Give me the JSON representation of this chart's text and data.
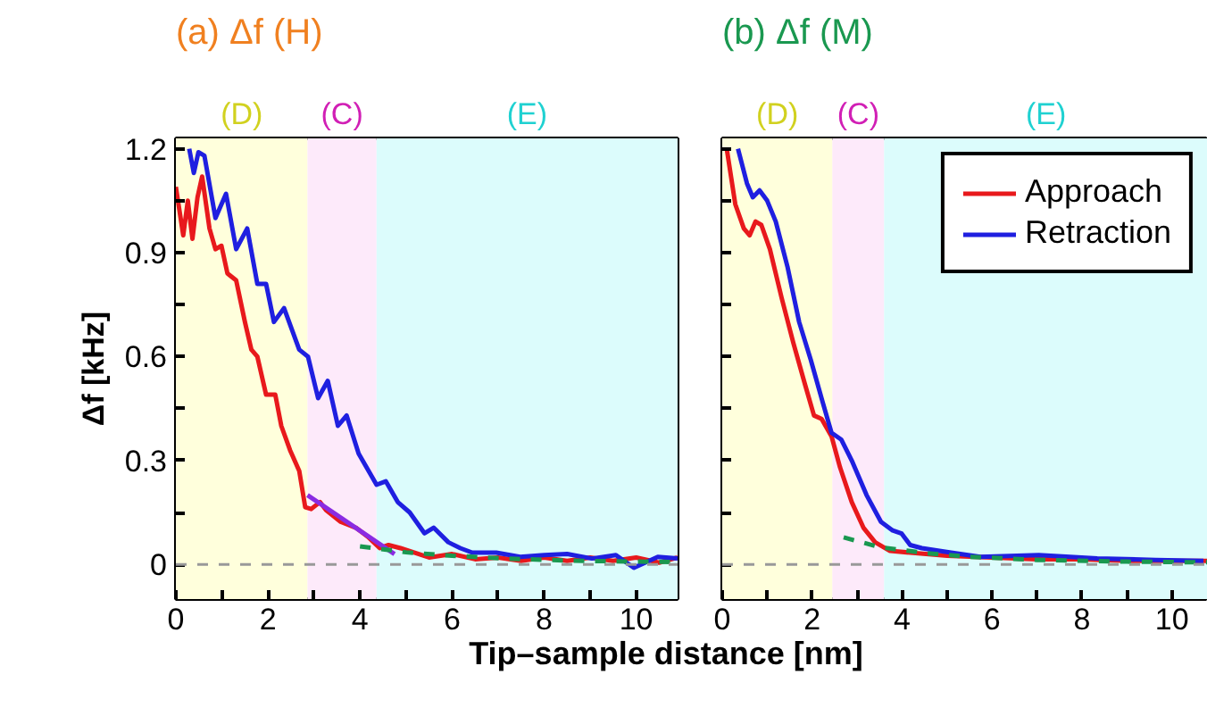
{
  "chart_data": [
    {
      "type": "line",
      "title": "(a) Δf (H)",
      "xlabel": "Tip–sample distance [nm]",
      "ylabel": "Δf [kHz]",
      "xlim": [
        0,
        10.9
      ],
      "ylim": [
        -0.1,
        1.23
      ],
      "xticks": [
        0,
        {
          "value": 1,
          "label": null
        },
        2,
        {
          "value": 3,
          "label": null
        },
        4,
        {
          "value": 5,
          "label": null
        },
        6,
        {
          "value": 7,
          "label": null
        },
        8,
        {
          "value": 9,
          "label": null
        },
        10
      ],
      "yticks": [
        0,
        {
          "value": 0.15,
          "label": null
        },
        0.3,
        {
          "value": 0.45,
          "label": null
        },
        0.6,
        {
          "value": 0.75,
          "label": null
        },
        0.9,
        {
          "value": 1.05,
          "label": null
        },
        1.2
      ],
      "grid": false,
      "legend": false,
      "line_style": "solid",
      "marker": "none",
      "bands": [
        {
          "axis": "x",
          "from": 0,
          "to": 2.86,
          "label": "(D)",
          "color": "#ffffdc"
        },
        {
          "axis": "x",
          "from": 2.86,
          "to": 4.36,
          "label": "(C)",
          "color": "#fdeafa"
        },
        {
          "axis": "x",
          "from": 4.36,
          "to": 10.9,
          "label": "(E)",
          "color": "#dcfcfc"
        }
      ],
      "ref_lines": [
        {
          "axis": "y",
          "value": 0,
          "color": "#999999",
          "line_style": "dashed"
        }
      ],
      "series": [
        {
          "color": "#e8191c",
          "x": [
            0,
            0.16,
            0.26,
            0.36,
            0.47,
            0.57,
            0.73,
            0.86,
            0.99,
            1.12,
            1.31,
            1.5,
            1.64,
            1.77,
            1.96,
            2.16,
            2.29,
            2.48,
            2.68,
            2.81,
            2.94,
            3.13,
            3.26,
            3.58,
            3.91,
            4.17,
            4.43,
            4.62,
            4.88,
            5.5,
            6,
            6.5,
            7,
            7.5,
            8,
            8.5,
            9,
            9.5,
            10,
            10.5,
            10.9
          ],
          "values": [
            1.09,
            0.95,
            1.05,
            0.94,
            1.06,
            1.12,
            0.97,
            0.91,
            0.92,
            0.84,
            0.82,
            0.7,
            0.62,
            0.6,
            0.49,
            0.49,
            0.4,
            0.33,
            0.27,
            0.165,
            0.16,
            0.18,
            0.157,
            0.123,
            0.106,
            0.08,
            0.047,
            0.056,
            0.047,
            0.02,
            0.03,
            0.015,
            0.02,
            0.01,
            0.02,
            0.01,
            0.02,
            0.01,
            0.02,
            0.005,
            0.02
          ]
        },
        {
          "color": "#1f1fe0",
          "x": [
            0.29,
            0.39,
            0.49,
            0.62,
            0.86,
            1.09,
            1.31,
            1.55,
            1.77,
            1.96,
            2.13,
            2.35,
            2.68,
            2.87,
            3.09,
            3.3,
            3.52,
            3.71,
            3.97,
            4.36,
            4.56,
            4.82,
            5.08,
            5.4,
            5.6,
            5.92,
            6.18,
            6.44,
            6.96,
            7.48,
            8,
            8.5,
            9.04,
            9.56,
            9.95,
            10.47,
            10.9
          ],
          "values": [
            1.2,
            1.13,
            1.19,
            1.18,
            1.0,
            1.07,
            0.91,
            0.97,
            0.81,
            0.81,
            0.7,
            0.74,
            0.62,
            0.6,
            0.48,
            0.53,
            0.4,
            0.43,
            0.32,
            0.23,
            0.24,
            0.18,
            0.15,
            0.09,
            0.106,
            0.064,
            0.047,
            0.034,
            0.034,
            0.022,
            0.027,
            0.03,
            0.017,
            0.027,
            -0.01,
            0.022,
            0.017
          ]
        },
        {
          "color": "#8a2be2",
          "x": [
            2.86,
            4.75
          ],
          "values": [
            0.2,
            0.03
          ]
        },
        {
          "color": "#1a9850",
          "line_style": "dashed",
          "x": [
            4,
            5,
            6,
            7,
            8,
            9,
            10,
            10.9
          ],
          "values": [
            0.052,
            0.035,
            0.025,
            0.018,
            0.013,
            0.01,
            0.008,
            0.007
          ]
        }
      ]
    },
    {
      "type": "line",
      "title": "(b) Δf (M)",
      "xlim": [
        0,
        10.8
      ],
      "ylim": [
        -0.1,
        1.23
      ],
      "tick_labels": "x",
      "xticks": [
        0,
        {
          "value": 1,
          "label": null
        },
        2,
        {
          "value": 3,
          "label": null
        },
        4,
        {
          "value": 5,
          "label": null
        },
        6,
        {
          "value": 7,
          "label": null
        },
        8,
        {
          "value": 9,
          "label": null
        },
        10
      ],
      "yticks": [
        0,
        0.15,
        0.3,
        0.45,
        0.6,
        0.75,
        0.9,
        1.05,
        1.2
      ],
      "grid": false,
      "legend": "top right",
      "line_style": "solid",
      "marker": "none",
      "bands": [
        {
          "axis": "x",
          "from": 0,
          "to": 2.45,
          "label": "(D)",
          "color": "#ffffdc"
        },
        {
          "axis": "x",
          "from": 2.45,
          "to": 3.6,
          "label": "(C)",
          "color": "#fdeafa"
        },
        {
          "axis": "x",
          "from": 3.6,
          "to": 10.8,
          "label": "(E)",
          "color": "#dcfcfc"
        }
      ],
      "ref_lines": [
        {
          "axis": "y",
          "value": 0,
          "color": "#999999",
          "line_style": "dashed"
        }
      ],
      "series": [
        {
          "name": "Approach",
          "color": "#e8191c",
          "x": [
            0.1,
            0.29,
            0.48,
            0.61,
            0.74,
            0.87,
            1.06,
            1.32,
            1.58,
            1.84,
            2.04,
            2.21,
            2.43,
            2.62,
            2.88,
            3.14,
            3.4,
            3.73,
            4.18,
            5,
            6,
            7,
            8,
            9,
            10,
            10.8
          ],
          "values": [
            1.2,
            1.04,
            0.97,
            0.95,
            0.99,
            0.98,
            0.91,
            0.77,
            0.64,
            0.52,
            0.43,
            0.42,
            0.37,
            0.28,
            0.18,
            0.106,
            0.064,
            0.039,
            0.034,
            0.025,
            0.02,
            0.015,
            0.015,
            0.01,
            0.01,
            0.01
          ]
        },
        {
          "name": "Retraction",
          "color": "#1f1fe0",
          "x": [
            0.35,
            0.55,
            0.68,
            0.83,
            1.0,
            1.19,
            1.45,
            1.71,
            1.97,
            2.23,
            2.43,
            2.65,
            2.88,
            3.21,
            3.53,
            3.79,
            3.99,
            4.18,
            4.44,
            5.09,
            5.74,
            7.04,
            8.34,
            9.64,
            10.7
          ],
          "values": [
            1.2,
            1.1,
            1.06,
            1.08,
            1.05,
            0.99,
            0.86,
            0.7,
            0.59,
            0.47,
            0.38,
            0.36,
            0.3,
            0.2,
            0.123,
            0.098,
            0.089,
            0.056,
            0.047,
            0.034,
            0.022,
            0.027,
            0.017,
            0.013,
            0.01
          ]
        },
        {
          "color": "#1a9850",
          "line_style": "dashed",
          "x": [
            2.7,
            3.5,
            4.5,
            5.5,
            7,
            9,
            10.8
          ],
          "values": [
            0.078,
            0.05,
            0.033,
            0.022,
            0.013,
            0.008,
            0.006
          ]
        }
      ]
    }
  ]
}
